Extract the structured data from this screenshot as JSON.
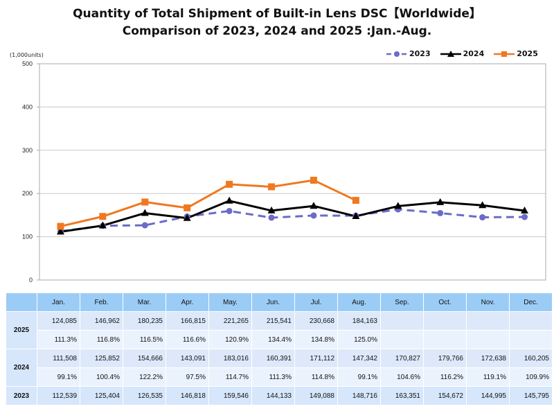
{
  "title_line1": "Quantity of Total Shipment of Built-in Lens DSC【Worldwide】",
  "title_line2": "Comparison of 2023, 2024 and 2025 :Jan.-Aug.",
  "chart_data": {
    "type": "line",
    "title": "Quantity of Total Shipment of Built-in Lens DSC【Worldwide】 Comparison of 2023, 2024 and 2025 :Jan.-Aug.",
    "ylabel": "(1,000units)",
    "xlabel": "",
    "ylim": [
      0,
      500
    ],
    "yticks": [
      0,
      100,
      200,
      300,
      400,
      500
    ],
    "grid": true,
    "legend": "top-right",
    "categories": [
      "Jan.",
      "Feb.",
      "Mar.",
      "Apr.",
      "May.",
      "Jun.",
      "Jul.",
      "Aug.",
      "Sep.",
      "Oct.",
      "Nov.",
      "Dec."
    ],
    "series": [
      {
        "name": "2023",
        "color": "#6b6bc8",
        "style": "dashed",
        "marker": "circle",
        "values": [
          112.539,
          125.404,
          126.535,
          146.818,
          159.546,
          144.133,
          149.088,
          148.716,
          163.351,
          154.672,
          144.995,
          145.795
        ]
      },
      {
        "name": "2024",
        "color": "#000000",
        "style": "solid",
        "marker": "triangle",
        "values": [
          111.508,
          125.852,
          154.666,
          143.091,
          183.016,
          160.391,
          171.112,
          147.342,
          170.827,
          179.766,
          172.638,
          160.205
        ]
      },
      {
        "name": "2025",
        "color": "#f07820",
        "style": "solid",
        "marker": "square",
        "values": [
          124.085,
          146.962,
          180.235,
          166.815,
          221.265,
          215.541,
          230.668,
          184.163,
          null,
          null,
          null,
          null
        ]
      }
    ]
  },
  "table": {
    "months": [
      "Jan.",
      "Feb.",
      "Mar.",
      "Apr.",
      "May.",
      "Jun.",
      "Jul.",
      "Aug.",
      "Sep.",
      "Oct.",
      "Nov.",
      "Dec."
    ],
    "rows": [
      {
        "year": "2025",
        "units": [
          "124,085",
          "146,962",
          "180,235",
          "166,815",
          "221,265",
          "215,541",
          "230,668",
          "184,163",
          "",
          "",
          "",
          ""
        ],
        "pct": [
          "111.3%",
          "116.8%",
          "116.5%",
          "116.6%",
          "120.9%",
          "134.4%",
          "134.8%",
          "125.0%",
          "",
          "",
          "",
          ""
        ]
      },
      {
        "year": "2024",
        "units": [
          "111,508",
          "125,852",
          "154,666",
          "143,091",
          "183,016",
          "160,391",
          "171,112",
          "147,342",
          "170,827",
          "179,766",
          "172,638",
          "160,205"
        ],
        "pct": [
          "99.1%",
          "100.4%",
          "122.2%",
          "97.5%",
          "114.7%",
          "111.3%",
          "114.8%",
          "99.1%",
          "104.6%",
          "116.2%",
          "119.1%",
          "109.9%"
        ]
      },
      {
        "year": "2023",
        "units": [
          "112,539",
          "125,404",
          "126,535",
          "146,818",
          "159,546",
          "144,133",
          "149,088",
          "148,716",
          "163,351",
          "154,672",
          "144,995",
          "145,795"
        ]
      }
    ]
  }
}
